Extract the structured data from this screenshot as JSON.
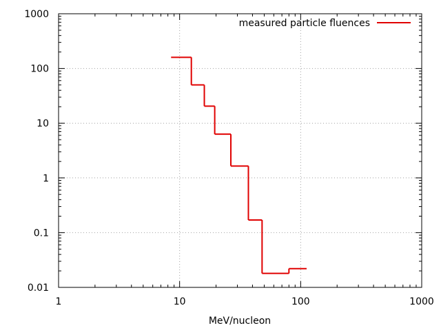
{
  "chart_data": {
    "type": "line",
    "step": true,
    "x_scale": "log",
    "y_scale": "log",
    "xlabel": "MeV/nucleon",
    "ylabel": "",
    "xlim": [
      1,
      1000
    ],
    "ylim": [
      0.01,
      1000
    ],
    "grid": true,
    "legend_position": "top-right",
    "x_ticks": [
      "1",
      "10",
      "100",
      "1000"
    ],
    "y_ticks": [
      "0.01",
      "0.1",
      "1",
      "10",
      "100",
      "1000"
    ],
    "series": [
      {
        "name": "measured particle fluences",
        "color": "#e00000",
        "steps": [
          {
            "x0": 8.5,
            "x1": 12.5,
            "y": 160
          },
          {
            "x0": 12.5,
            "x1": 16,
            "y": 50
          },
          {
            "x0": 16,
            "x1": 19.5,
            "y": 20.5
          },
          {
            "x0": 19.5,
            "x1": 26.5,
            "y": 6.3
          },
          {
            "x0": 26.5,
            "x1": 37,
            "y": 1.65
          },
          {
            "x0": 37,
            "x1": 48,
            "y": 0.17
          },
          {
            "x0": 48,
            "x1": 80,
            "y": 0.018
          },
          {
            "x0": 80,
            "x1": 112,
            "y": 0.022
          }
        ]
      }
    ]
  }
}
